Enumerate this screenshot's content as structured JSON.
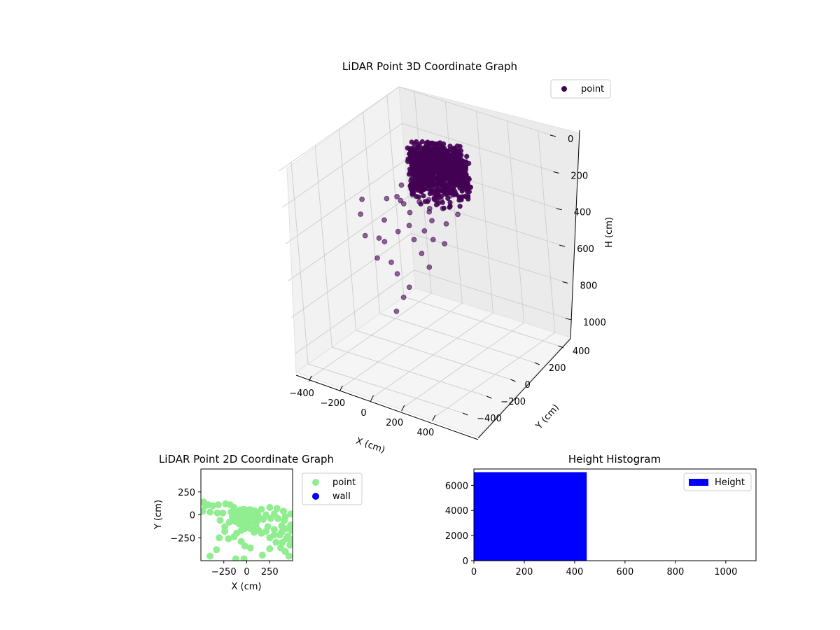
{
  "figure": {
    "background": "#ffffff"
  },
  "chart_data": [
    {
      "type": "scatter3d",
      "title": "LiDAR Point 3D Coordinate Graph",
      "xlabel": "X (cm)",
      "ylabel": "Y (cm)",
      "zlabel": "H (cm)",
      "xlim": [
        -500,
        500
      ],
      "ylim": [
        -500,
        500
      ],
      "zlim": [
        1100,
        0
      ],
      "x_ticks": [
        -400,
        -200,
        0,
        200,
        400
      ],
      "y_ticks": [
        400,
        200,
        0,
        -200,
        -400
      ],
      "z_ticks": [
        0,
        200,
        400,
        600,
        800,
        1000
      ],
      "z_inverted": true,
      "grid": true,
      "legend": {
        "position": "top-right",
        "entries": [
          {
            "label": "point",
            "color": "#440154"
          }
        ]
      },
      "series": [
        {
          "name": "point",
          "color": "#440154",
          "dense_cluster": {
            "x_range": [
              -100,
              250
            ],
            "y_range": [
              -50,
              200
            ],
            "h_range": [
              0,
              250
            ]
          },
          "points": [
            [
              -320,
              -80,
              300
            ],
            [
              -380,
              -30,
              420
            ],
            [
              -260,
              -150,
              450
            ],
            [
              -240,
              20,
              320
            ],
            [
              -200,
              -60,
              390
            ],
            [
              -180,
              80,
              360
            ],
            [
              -160,
              -120,
              470
            ],
            [
              -140,
              10,
              300
            ],
            [
              -120,
              -40,
              250
            ],
            [
              -100,
              60,
              280
            ],
            [
              -90,
              -90,
              410
            ],
            [
              -80,
              120,
              260
            ],
            [
              -60,
              -20,
              330
            ],
            [
              -40,
              40,
              220
            ],
            [
              -30,
              -70,
              370
            ],
            [
              -20,
              90,
              300
            ],
            [
              0,
              -10,
              260
            ],
            [
              10,
              50,
              340
            ],
            [
              20,
              -100,
              420
            ],
            [
              40,
              20,
              300
            ],
            [
              60,
              -60,
              380
            ],
            [
              70,
              80,
              270
            ],
            [
              90,
              -30,
              330
            ],
            [
              110,
              40,
              290
            ],
            [
              130,
              -80,
              400
            ],
            [
              150,
              10,
              350
            ],
            [
              170,
              -40,
              430
            ],
            [
              190,
              60,
              310
            ],
            [
              -110,
              -140,
              560
            ],
            [
              -60,
              -160,
              600
            ],
            [
              30,
              -180,
              640
            ],
            [
              20,
              -220,
              680
            ],
            [
              -150,
              -200,
              520
            ],
            [
              -220,
              -90,
              480
            ],
            [
              80,
              -120,
              470
            ],
            [
              140,
              -140,
              520
            ],
            [
              -50,
              150,
              240
            ],
            [
              0,
              170,
              230
            ],
            [
              60,
              140,
              250
            ],
            [
              -10,
              -250,
              750
            ],
            [
              -130,
              100,
              240
            ],
            [
              -170,
              140,
              260
            ],
            [
              -210,
              110,
              280
            ],
            [
              100,
              120,
              260
            ]
          ]
        }
      ]
    },
    {
      "type": "scatter",
      "title": "LiDAR Point 2D Coordinate Graph",
      "xlabel": "X (cm)",
      "ylabel": "Y (cm)",
      "xlim": [
        -500,
        500
      ],
      "ylim": [
        -500,
        500
      ],
      "x_ticks": [
        -250,
        0,
        250
      ],
      "y_ticks": [
        250,
        0,
        -250
      ],
      "legend": {
        "position": "outside-right",
        "entries": [
          {
            "label": "point",
            "color": "#90ee90"
          },
          {
            "label": "wall",
            "color": "#0000ff"
          }
        ]
      },
      "series": [
        {
          "name": "point",
          "color": "#90ee90",
          "blob": {
            "center": [
              -10,
              0
            ],
            "radius": 150
          },
          "points": [
            [
              -470,
              140
            ],
            [
              -450,
              100
            ],
            [
              -420,
              110
            ],
            [
              -370,
              100
            ],
            [
              -310,
              110
            ],
            [
              -230,
              120
            ],
            [
              -180,
              110
            ],
            [
              -140,
              80
            ],
            [
              -480,
              40
            ],
            [
              -400,
              30
            ],
            [
              -320,
              20
            ],
            [
              -260,
              20
            ],
            [
              -170,
              30
            ],
            [
              -290,
              -60
            ],
            [
              -190,
              -80
            ],
            [
              -120,
              -60
            ],
            [
              -80,
              -100
            ],
            [
              -60,
              -170
            ],
            [
              -110,
              -200
            ],
            [
              -240,
              -180
            ],
            [
              -300,
              -250
            ],
            [
              -200,
              -260
            ],
            [
              -140,
              -240
            ],
            [
              -60,
              -290
            ],
            [
              -330,
              -380
            ],
            [
              -400,
              -450
            ],
            [
              -120,
              -480
            ],
            [
              -30,
              -480
            ],
            [
              170,
              -440
            ],
            [
              250,
              -370
            ],
            [
              160,
              -200
            ],
            [
              250,
              -250
            ],
            [
              320,
              -300
            ],
            [
              370,
              -360
            ],
            [
              420,
              -400
            ],
            [
              460,
              -450
            ],
            [
              470,
              -330
            ],
            [
              480,
              -270
            ],
            [
              450,
              -230
            ],
            [
              380,
              -190
            ],
            [
              300,
              -160
            ],
            [
              230,
              -130
            ],
            [
              180,
              -50
            ],
            [
              260,
              -40
            ],
            [
              340,
              -40
            ],
            [
              410,
              -60
            ],
            [
              480,
              -110
            ],
            [
              490,
              -170
            ],
            [
              430,
              -260
            ],
            [
              390,
              -300
            ],
            [
              360,
              -220
            ],
            [
              300,
              -220
            ],
            [
              210,
              -180
            ],
            [
              210,
              0
            ],
            [
              300,
              10
            ],
            [
              420,
              -20
            ],
            [
              480,
              10
            ],
            [
              380,
              -120
            ],
            [
              430,
              -150
            ],
            [
              160,
              60
            ],
            [
              250,
              80
            ],
            [
              330,
              70
            ],
            [
              400,
              40
            ],
            [
              40,
              -150
            ],
            [
              -20,
              -150
            ],
            [
              100,
              -120
            ],
            [
              80,
              -190
            ],
            [
              130,
              -170
            ],
            [
              -20,
              -340
            ],
            [
              40,
              -360
            ],
            [
              -240,
              -130
            ]
          ]
        },
        {
          "name": "wall",
          "color": "#0000ff",
          "points": []
        }
      ]
    },
    {
      "type": "bar",
      "title": "Height Histogram",
      "xlabel": "",
      "ylabel": "",
      "xlim": [
        0,
        1120
      ],
      "ylim": [
        0,
        7300
      ],
      "x_ticks": [
        0,
        200,
        400,
        600,
        800,
        1000
      ],
      "y_ticks": [
        0,
        2000,
        4000,
        6000
      ],
      "legend": {
        "position": "top-right",
        "entries": [
          {
            "label": "Height",
            "color": "#0000ff"
          }
        ]
      },
      "series": [
        {
          "name": "Height",
          "color": "#0000ff",
          "bins": [
            {
              "from": 0,
              "to": 448,
              "count": 7050
            },
            {
              "from": 448,
              "to": 1120,
              "count": 0
            }
          ]
        }
      ]
    }
  ]
}
